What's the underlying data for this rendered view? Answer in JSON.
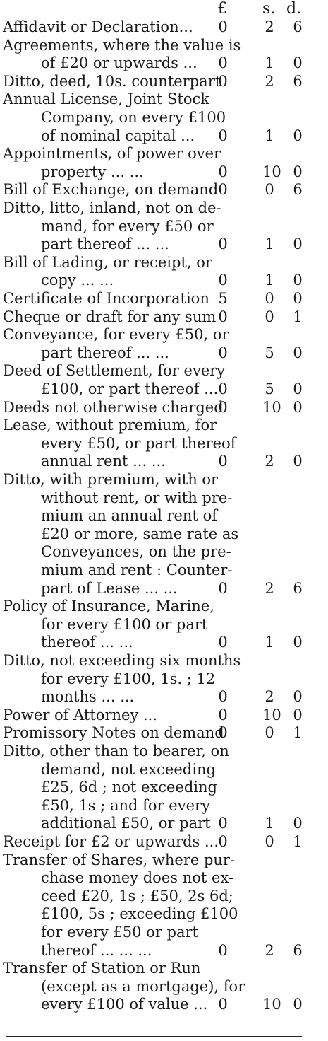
{
  "header": {
    "pounds": "£",
    "shillings": "s.",
    "pence": "d."
  },
  "entries": [
    {
      "lines": [
        "Affidavit or Declaration..."
      ],
      "amount": [
        "0",
        "2",
        "6"
      ]
    },
    {
      "lines": [
        "Agreements, where the value is",
        "of £20 or upwards ..."
      ],
      "amount": [
        "0",
        "1",
        "0"
      ]
    },
    {
      "lines": [
        "Ditto, deed, 10s. counterpart"
      ],
      "amount": [
        "0",
        "2",
        "6"
      ]
    },
    {
      "lines": [
        "Annual License, Joint Stock",
        "Company, on every £100",
        "of nominal capital ..."
      ],
      "amount": [
        "0",
        "1",
        "0"
      ]
    },
    {
      "lines": [
        "Appointments, of power over",
        "property ... ..."
      ],
      "amount": [
        "0",
        "10",
        "0"
      ]
    },
    {
      "lines": [
        "Bill of Exchange, on demand"
      ],
      "amount": [
        "0",
        "0",
        "6"
      ]
    },
    {
      "lines": [
        "Ditto, litto, inland, not on de-",
        "mand, for every £50 or",
        "part thereof ... ..."
      ],
      "amount": [
        "0",
        "1",
        "0"
      ]
    },
    {
      "lines": [
        "Bill of Lading, or receipt, or",
        "copy ... ..."
      ],
      "amount": [
        "0",
        "1",
        "0"
      ]
    },
    {
      "lines": [
        "Certificate of Incorporation"
      ],
      "amount": [
        "5",
        "0",
        "0"
      ]
    },
    {
      "lines": [
        "Cheque or draft for any sum"
      ],
      "amount": [
        "0",
        "0",
        "1"
      ]
    },
    {
      "lines": [
        "Conveyance, for every £50, or",
        "part thereof ... ..."
      ],
      "amount": [
        "0",
        "5",
        "0"
      ]
    },
    {
      "lines": [
        "Deed of Settlement, for every",
        "£100, or part thereof ..."
      ],
      "amount": [
        "0",
        "5",
        "0"
      ]
    },
    {
      "lines": [
        "Deeds not otherwise charged"
      ],
      "amount": [
        "0",
        "10",
        "0"
      ]
    },
    {
      "lines": [
        "Lease, without premium, for",
        "every £50, or part thereof",
        "annual rent ... ..."
      ],
      "amount": [
        "0",
        "2",
        "0"
      ]
    },
    {
      "lines": [
        "Ditto, with premium, with or",
        "without rent, or with pre-",
        "mium an annual rent of",
        "£20 or more, same rate as",
        "Conveyances, on the pre-",
        "mium and rent : Counter-",
        "part of Lease ... ..."
      ],
      "amount": [
        "0",
        "2",
        "6"
      ]
    },
    {
      "lines": [
        "Policy of Insurance, Marine,",
        "for every £100 or part",
        "thereof ... ..."
      ],
      "amount": [
        "0",
        "1",
        "0"
      ]
    },
    {
      "lines": [
        "Ditto, not exceeding six months",
        "for every £100, 1s. ; 12",
        "months ... ..."
      ],
      "amount": [
        "0",
        "2",
        "0"
      ]
    },
    {
      "lines": [
        "Power of Attorney ..."
      ],
      "amount": [
        "0",
        "10",
        "0"
      ]
    },
    {
      "lines": [
        "Promissory Notes on demand"
      ],
      "amount": [
        "0",
        "0",
        "1"
      ]
    },
    {
      "lines": [
        "Ditto, other than to bearer, on",
        "demand, not exceeding",
        "£25, 6d ; not exceeding",
        "£50, 1s ; and for every",
        "additional £50, or part"
      ],
      "amount": [
        "0",
        "1",
        "0"
      ]
    },
    {
      "lines": [
        "Receipt for £2 or upwards ..."
      ],
      "amount": [
        "0",
        "0",
        "1"
      ]
    },
    {
      "lines": [
        "Transfer of Shares, where pur-",
        "chase money does not ex-",
        "ceed £20, 1s ; £50, 2s 6d;",
        "£100, 5s ; exceeding £100",
        "for every £50 or part",
        "thereof ... ... ..."
      ],
      "amount": [
        "0",
        "2",
        "6"
      ]
    },
    {
      "lines": [
        "Transfer of Station or Run",
        "(except as a mortgage), for",
        "every £100 of value ..."
      ],
      "amount": [
        "0",
        "10",
        "0"
      ]
    }
  ]
}
